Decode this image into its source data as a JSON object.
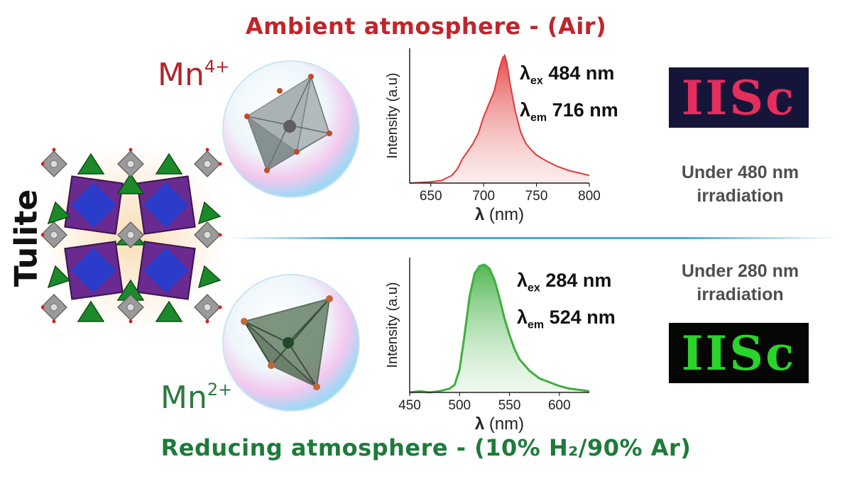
{
  "header": {
    "title": "Ambient atmosphere - (Air)"
  },
  "footer": {
    "title": "Reducing atmosphere - (10% H₂/90% Ar)"
  },
  "material": {
    "name": "Tulite"
  },
  "ions": {
    "top": {
      "base": "Mn",
      "charge": "4+"
    },
    "bottom": {
      "base": "Mn",
      "charge": "2+"
    }
  },
  "top_panel": {
    "ex_symbol": "λ",
    "ex_sub": "ex",
    "ex_value": "484 nm",
    "em_symbol": "λ",
    "em_sub": "em",
    "em_value": "716 nm",
    "irradiation_line1": "Under 480 nm",
    "irradiation_line2": "irradiation",
    "logo": "IISc"
  },
  "bottom_panel": {
    "ex_symbol": "λ",
    "ex_sub": "ex",
    "ex_value": "284 nm",
    "em_symbol": "λ",
    "em_sub": "em",
    "em_value": "524 nm",
    "irradiation_line1": "Under 280 nm",
    "irradiation_line2": "irradiation",
    "logo": "IISc"
  },
  "colors": {
    "red": "#e03a3a",
    "green": "#3fae3f",
    "divider": "#3fa9e6"
  },
  "chart_data": [
    {
      "type": "line",
      "ylabel": "Intensity (a.u)",
      "xlabel_symbol": "λ",
      "xlabel_unit": "(nm)",
      "xlim": [
        630,
        800
      ],
      "ylim": [
        0,
        1
      ],
      "xticks": [
        "650",
        "700",
        "750",
        "800"
      ],
      "xtick_values": [
        650,
        700,
        750,
        800
      ],
      "series": [
        {
          "color": "#e03a3a",
          "x": [
            630,
            650,
            660,
            670,
            675,
            680,
            685,
            690,
            695,
            700,
            705,
            710,
            715,
            718,
            720,
            722,
            725,
            730,
            735,
            740,
            745,
            750,
            760,
            770,
            780,
            790,
            800
          ],
          "y": [
            0.0,
            0.01,
            0.02,
            0.06,
            0.11,
            0.19,
            0.25,
            0.31,
            0.39,
            0.52,
            0.62,
            0.72,
            0.9,
            0.98,
            1.0,
            0.94,
            0.78,
            0.56,
            0.4,
            0.31,
            0.26,
            0.22,
            0.17,
            0.13,
            0.1,
            0.08,
            0.06
          ]
        }
      ]
    },
    {
      "type": "line",
      "ylabel": "Intensity (a.u)",
      "xlabel_symbol": "λ",
      "xlabel_unit": "(nm)",
      "xlim": [
        450,
        630
      ],
      "ylim": [
        0,
        1
      ],
      "xticks": [
        "450",
        "500",
        "550",
        "600"
      ],
      "xtick_values": [
        450,
        500,
        550,
        600
      ],
      "series": [
        {
          "color": "#3fae3f",
          "x": [
            450,
            460,
            470,
            480,
            490,
            495,
            500,
            505,
            510,
            515,
            520,
            525,
            530,
            535,
            540,
            545,
            550,
            555,
            560,
            570,
            580,
            590,
            600,
            610,
            620,
            630
          ],
          "y": [
            0.0,
            0.01,
            0.0,
            0.01,
            0.03,
            0.06,
            0.18,
            0.45,
            0.75,
            0.93,
            0.99,
            1.0,
            0.97,
            0.88,
            0.74,
            0.58,
            0.45,
            0.34,
            0.26,
            0.17,
            0.11,
            0.08,
            0.05,
            0.03,
            0.02,
            0.01
          ]
        }
      ]
    }
  ]
}
